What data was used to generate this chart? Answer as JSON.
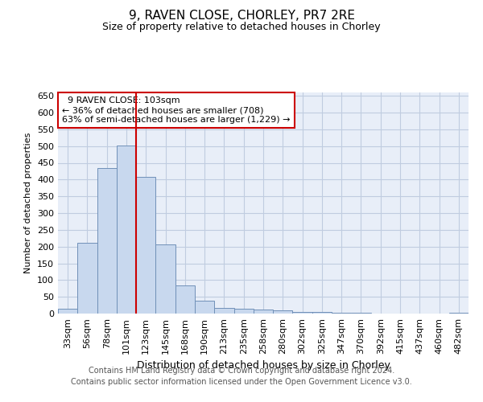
{
  "title_line1": "9, RAVEN CLOSE, CHORLEY, PR7 2RE",
  "title_line2": "Size of property relative to detached houses in Chorley",
  "xlabel": "Distribution of detached houses by size in Chorley",
  "ylabel": "Number of detached properties",
  "footer_line1": "Contains HM Land Registry data © Crown copyright and database right 2024.",
  "footer_line2": "Contains public sector information licensed under the Open Government Licence v3.0.",
  "annotation_line1": "  9 RAVEN CLOSE: 103sqm",
  "annotation_line2": "← 36% of detached houses are smaller (708)",
  "annotation_line3": "63% of semi-detached houses are larger (1,229) →",
  "categories": [
    "33sqm",
    "56sqm",
    "78sqm",
    "101sqm",
    "123sqm",
    "145sqm",
    "168sqm",
    "190sqm",
    "213sqm",
    "235sqm",
    "258sqm",
    "280sqm",
    "302sqm",
    "325sqm",
    "347sqm",
    "370sqm",
    "392sqm",
    "415sqm",
    "437sqm",
    "460sqm",
    "482sqm"
  ],
  "values": [
    15,
    212,
    435,
    502,
    407,
    207,
    84,
    39,
    16,
    15,
    13,
    10,
    5,
    4,
    2,
    2,
    1,
    1,
    1,
    1,
    3
  ],
  "bar_color": "#c8d8ee",
  "bar_edge_color": "#7090b8",
  "vline_color": "#cc0000",
  "annotation_box_edge": "#cc0000",
  "grid_color": "#c0cce0",
  "background_color": "#e8eef8",
  "ylim": [
    0,
    660
  ],
  "yticks": [
    0,
    50,
    100,
    150,
    200,
    250,
    300,
    350,
    400,
    450,
    500,
    550,
    600,
    650
  ],
  "title_fontsize": 11,
  "subtitle_fontsize": 9,
  "tick_fontsize": 8,
  "ylabel_fontsize": 8,
  "xlabel_fontsize": 9,
  "footer_fontsize": 7
}
